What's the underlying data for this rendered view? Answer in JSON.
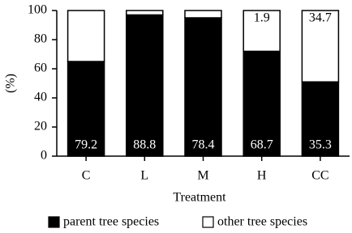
{
  "chart_data": {
    "type": "stacked_bar",
    "x_label": "Treatment",
    "y_label": "(%)",
    "categories": [
      "C",
      "L",
      "M",
      "H",
      "CC"
    ],
    "series": [
      {
        "name": "parent tree species",
        "color": "#000000",
        "values": [
          65,
          97,
          95,
          72,
          51
        ],
        "annotations": [
          "79.2",
          "88.8",
          "78.4",
          "68.7",
          "35.3"
        ]
      },
      {
        "name": "other tree species",
        "color": "#ffffff",
        "values": [
          35,
          3,
          5,
          28,
          49
        ],
        "annotations": [
          null,
          null,
          null,
          "1.9",
          "34.7"
        ]
      }
    ],
    "ylim": [
      0,
      100
    ],
    "yticks": [
      0,
      20,
      40,
      60,
      80,
      100
    ],
    "grid": false
  }
}
